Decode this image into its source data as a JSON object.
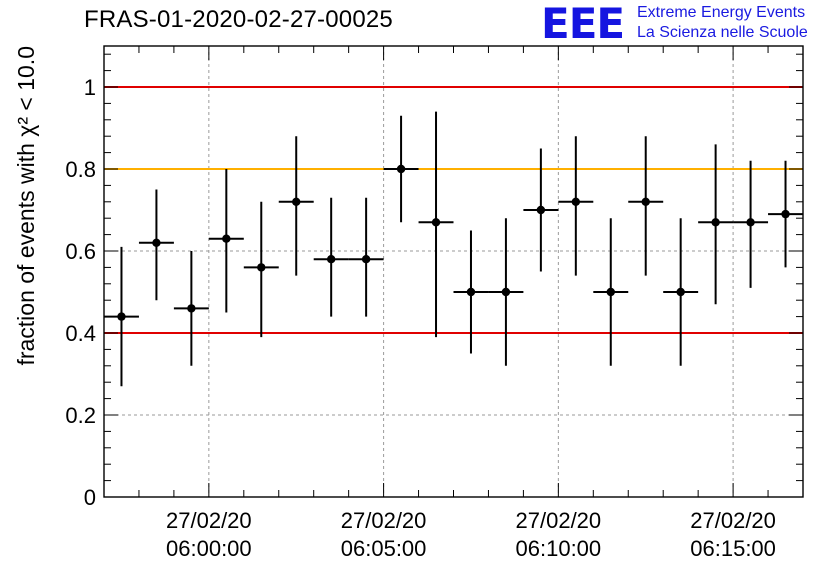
{
  "header": {
    "title": "FRAS-01-2020-02-27-00025",
    "logo_mark": "EEE",
    "logo_line1": "Extreme Energy Events",
    "logo_line2": "La Scienza nelle Scuole"
  },
  "colors": {
    "points": "#000000",
    "threshold_red": "#e00000",
    "threshold_orange": "#ffb000",
    "grid": "#9a9a9a",
    "logo": "#1515e0"
  },
  "chart_data": {
    "type": "scatter",
    "title": "FRAS-01-2020-02-27-00025",
    "xlabel": "",
    "ylabel": "fraction of events with χ² < 10.0",
    "ylim": [
      0,
      1.1
    ],
    "xlim": [
      "05:57:00",
      "06:17:00"
    ],
    "yticks": [
      0,
      0.2,
      0.4,
      0.6,
      0.8,
      1
    ],
    "ytick_labels": [
      "0",
      "0.2",
      "0.4",
      "0.6",
      "0.8",
      "1"
    ],
    "xticks": [
      "06:00:00",
      "06:05:00",
      "06:10:00",
      "06:15:00"
    ],
    "xtick_labels": [
      [
        "27/02/20",
        "06:00:00"
      ],
      [
        "27/02/20",
        "06:05:00"
      ],
      [
        "27/02/20",
        "06:10:00"
      ],
      [
        "27/02/20",
        "06:15:00"
      ]
    ],
    "grid": true,
    "reference_lines": [
      {
        "y": 1.0,
        "color": "red"
      },
      {
        "y": 0.8,
        "color": "orange"
      },
      {
        "y": 0.4,
        "color": "red"
      }
    ],
    "points": [
      {
        "x": "05:57:30",
        "xerr": 30,
        "y": 0.44,
        "ylo": 0.27,
        "yhi": 0.61
      },
      {
        "x": "05:58:30",
        "xerr": 30,
        "y": 0.62,
        "ylo": 0.48,
        "yhi": 0.75
      },
      {
        "x": "05:59:30",
        "xerr": 30,
        "y": 0.46,
        "ylo": 0.32,
        "yhi": 0.6
      },
      {
        "x": "06:00:30",
        "xerr": 30,
        "y": 0.63,
        "ylo": 0.45,
        "yhi": 0.8
      },
      {
        "x": "06:01:30",
        "xerr": 30,
        "y": 0.56,
        "ylo": 0.39,
        "yhi": 0.72
      },
      {
        "x": "06:02:30",
        "xerr": 30,
        "y": 0.72,
        "ylo": 0.54,
        "yhi": 0.88
      },
      {
        "x": "06:03:30",
        "xerr": 30,
        "y": 0.58,
        "ylo": 0.44,
        "yhi": 0.73
      },
      {
        "x": "06:04:30",
        "xerr": 30,
        "y": 0.58,
        "ylo": 0.44,
        "yhi": 0.73
      },
      {
        "x": "06:05:30",
        "xerr": 30,
        "y": 0.8,
        "ylo": 0.67,
        "yhi": 0.93
      },
      {
        "x": "06:06:30",
        "xerr": 30,
        "y": 0.67,
        "ylo": 0.39,
        "yhi": 0.94
      },
      {
        "x": "06:07:30",
        "xerr": 30,
        "y": 0.5,
        "ylo": 0.35,
        "yhi": 0.65
      },
      {
        "x": "06:08:30",
        "xerr": 30,
        "y": 0.5,
        "ylo": 0.32,
        "yhi": 0.68
      },
      {
        "x": "06:09:30",
        "xerr": 30,
        "y": 0.7,
        "ylo": 0.55,
        "yhi": 0.85
      },
      {
        "x": "06:10:30",
        "xerr": 30,
        "y": 0.72,
        "ylo": 0.54,
        "yhi": 0.88
      },
      {
        "x": "06:11:30",
        "xerr": 30,
        "y": 0.5,
        "ylo": 0.32,
        "yhi": 0.68
      },
      {
        "x": "06:12:30",
        "xerr": 30,
        "y": 0.72,
        "ylo": 0.54,
        "yhi": 0.88
      },
      {
        "x": "06:13:30",
        "xerr": 30,
        "y": 0.5,
        "ylo": 0.32,
        "yhi": 0.68
      },
      {
        "x": "06:14:30",
        "xerr": 30,
        "y": 0.67,
        "ylo": 0.47,
        "yhi": 0.86
      },
      {
        "x": "06:15:30",
        "xerr": 30,
        "y": 0.67,
        "ylo": 0.51,
        "yhi": 0.82
      },
      {
        "x": "06:16:30",
        "xerr": 30,
        "y": 0.69,
        "ylo": 0.56,
        "yhi": 0.82
      }
    ]
  }
}
